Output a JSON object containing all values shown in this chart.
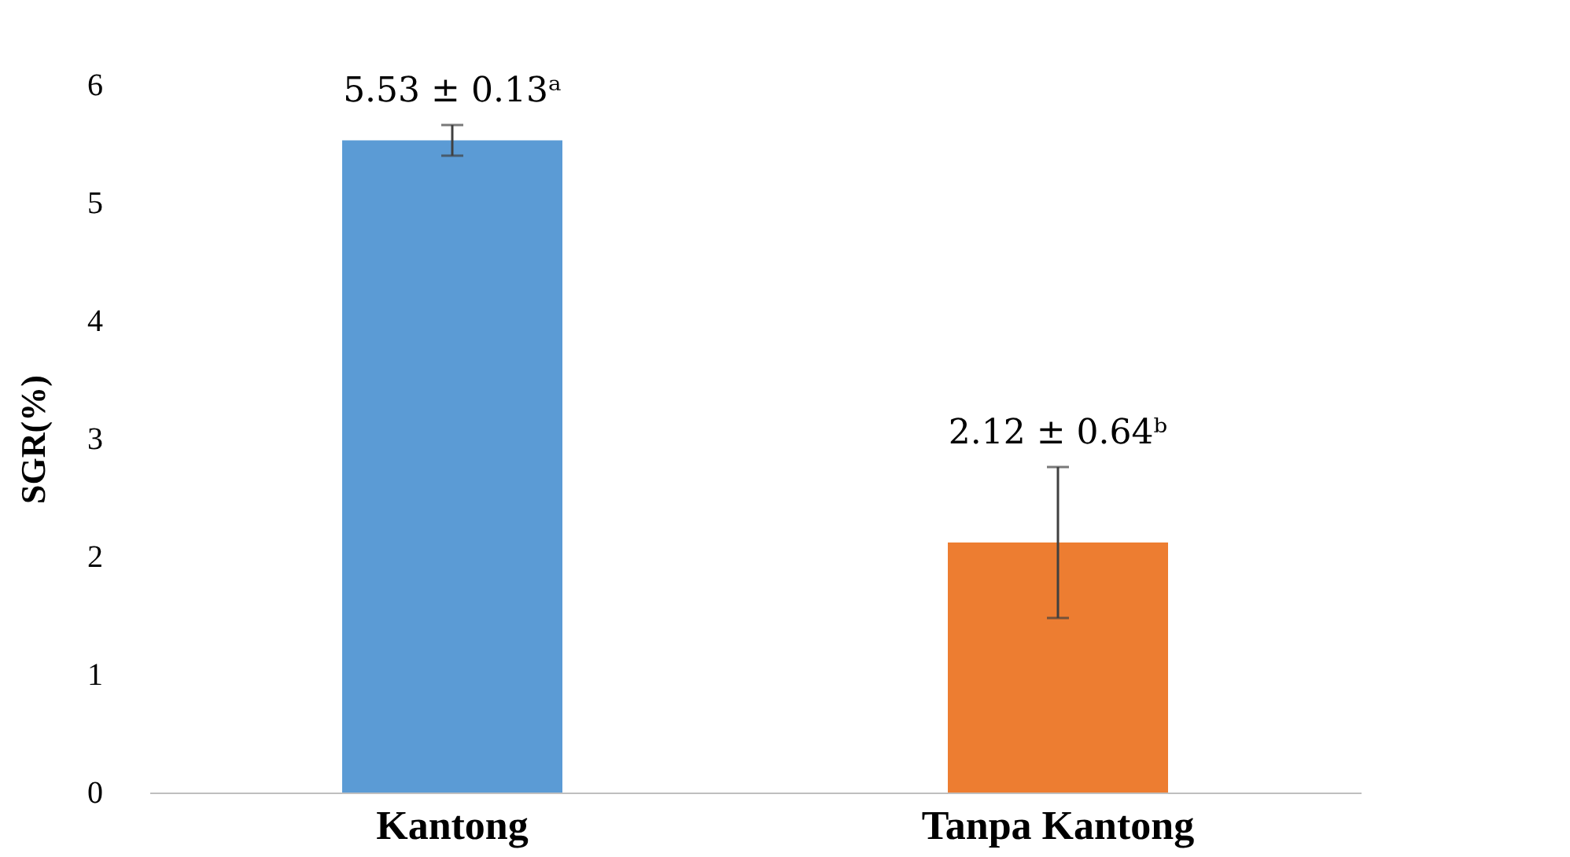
{
  "chart_data": {
    "type": "bar",
    "ylabel": "SGR(%)",
    "categories": [
      "Kantong",
      "Tanpa Kantong"
    ],
    "values": [
      5.53,
      2.12
    ],
    "errors": [
      0.13,
      0.64
    ],
    "colors": [
      "#5b9bd5",
      "#ed7d31"
    ],
    "value_labels": [
      "5.53 ± 0.13ᵃ",
      "2.12 ± 0.64ᵇ"
    ],
    "ylim": [
      0,
      6
    ],
    "yticks": [
      0,
      1,
      2,
      3,
      4,
      5,
      6
    ],
    "grid": false
  }
}
